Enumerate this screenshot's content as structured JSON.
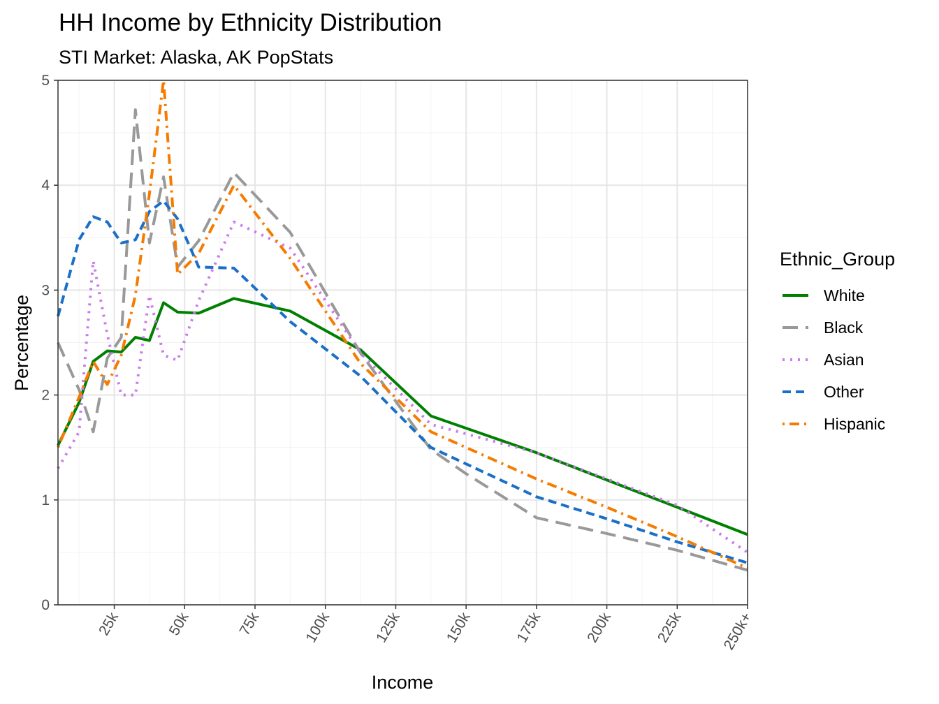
{
  "chart_data": {
    "type": "line",
    "title": "HH Income by Ethnicity Distribution",
    "subtitle": "STI Market: Alaska, AK PopStats",
    "xlabel": "Income",
    "ylabel": "Percentage",
    "xlim": [
      5,
      250
    ],
    "ylim": [
      0,
      5
    ],
    "x_ticks": [
      {
        "value": 25,
        "label": "25k"
      },
      {
        "value": 50,
        "label": "50k"
      },
      {
        "value": 75,
        "label": "75k"
      },
      {
        "value": 100,
        "label": "100k"
      },
      {
        "value": 125,
        "label": "125k"
      },
      {
        "value": 150,
        "label": "150k"
      },
      {
        "value": 175,
        "label": "175k"
      },
      {
        "value": 200,
        "label": "200k"
      },
      {
        "value": 225,
        "label": "225k"
      },
      {
        "value": 250,
        "label": "250k+"
      }
    ],
    "y_ticks": [
      {
        "value": 0,
        "label": "0"
      },
      {
        "value": 1,
        "label": "1"
      },
      {
        "value": 2,
        "label": "2"
      },
      {
        "value": 3,
        "label": "3"
      },
      {
        "value": 4,
        "label": "4"
      },
      {
        "value": 5,
        "label": "5"
      }
    ],
    "grid": true,
    "legend": {
      "title": "Ethnic_Group",
      "position": "right"
    },
    "series": [
      {
        "name": "White",
        "color": "#008000",
        "dash": "solid",
        "points": [
          [
            5,
            1.52
          ],
          [
            12.5,
            1.93
          ],
          [
            17.5,
            2.32
          ],
          [
            22.5,
            2.42
          ],
          [
            27.5,
            2.41
          ],
          [
            32.5,
            2.55
          ],
          [
            37.5,
            2.52
          ],
          [
            42.5,
            2.88
          ],
          [
            47.5,
            2.79
          ],
          [
            55,
            2.78
          ],
          [
            67.5,
            2.92
          ],
          [
            87.5,
            2.8
          ],
          [
            112.5,
            2.43
          ],
          [
            137.5,
            1.8
          ],
          [
            175,
            1.45
          ],
          [
            200,
            1.19
          ],
          [
            225,
            0.93
          ],
          [
            250,
            0.67
          ]
        ]
      },
      {
        "name": "Black",
        "color": "#999999",
        "dash": "longdash",
        "points": [
          [
            5,
            2.5
          ],
          [
            12.5,
            2.05
          ],
          [
            17.5,
            1.65
          ],
          [
            22.5,
            2.35
          ],
          [
            27.5,
            2.55
          ],
          [
            32.5,
            4.72
          ],
          [
            37.5,
            3.45
          ],
          [
            42.5,
            4.08
          ],
          [
            47.5,
            3.22
          ],
          [
            55,
            3.47
          ],
          [
            67.5,
            4.12
          ],
          [
            87.5,
            3.55
          ],
          [
            112.5,
            2.4
          ],
          [
            137.5,
            1.48
          ],
          [
            150,
            1.25
          ],
          [
            175,
            0.83
          ],
          [
            200,
            0.68
          ],
          [
            225,
            0.52
          ],
          [
            250,
            0.33
          ]
        ]
      },
      {
        "name": "Asian",
        "color": "#cc79ea",
        "dash": "dotted",
        "points": [
          [
            5,
            1.3
          ],
          [
            12.5,
            1.65
          ],
          [
            17.5,
            3.28
          ],
          [
            22.5,
            2.58
          ],
          [
            27.5,
            2.0
          ],
          [
            32.5,
            2.0
          ],
          [
            37.5,
            2.95
          ],
          [
            42.5,
            2.38
          ],
          [
            47.5,
            2.33
          ],
          [
            55,
            2.9
          ],
          [
            67.5,
            3.65
          ],
          [
            87.5,
            3.4
          ],
          [
            112.5,
            2.4
          ],
          [
            137.5,
            1.72
          ],
          [
            175,
            1.45
          ],
          [
            200,
            1.2
          ],
          [
            225,
            0.95
          ],
          [
            250,
            0.5
          ]
        ]
      },
      {
        "name": "Other",
        "color": "#1b6fc6",
        "dash": "dashed",
        "points": [
          [
            5,
            2.75
          ],
          [
            12.5,
            3.48
          ],
          [
            17.5,
            3.7
          ],
          [
            22.5,
            3.65
          ],
          [
            27.5,
            3.45
          ],
          [
            32.5,
            3.48
          ],
          [
            37.5,
            3.75
          ],
          [
            42.5,
            3.85
          ],
          [
            47.5,
            3.68
          ],
          [
            55,
            3.22
          ],
          [
            67.5,
            3.21
          ],
          [
            87.5,
            2.7
          ],
          [
            112.5,
            2.18
          ],
          [
            137.5,
            1.5
          ],
          [
            175,
            1.03
          ],
          [
            200,
            0.82
          ],
          [
            225,
            0.6
          ],
          [
            250,
            0.4
          ]
        ]
      },
      {
        "name": "Hispanic",
        "color": "#f57c00",
        "dash": "dotdash",
        "points": [
          [
            5,
            1.5
          ],
          [
            12.5,
            1.98
          ],
          [
            17.5,
            2.32
          ],
          [
            22.5,
            2.1
          ],
          [
            27.5,
            2.38
          ],
          [
            32.5,
            2.95
          ],
          [
            37.5,
            3.92
          ],
          [
            42.5,
            5.0
          ],
          [
            47.5,
            3.15
          ],
          [
            55,
            3.35
          ],
          [
            67.5,
            4.0
          ],
          [
            87.5,
            3.3
          ],
          [
            112.5,
            2.3
          ],
          [
            137.5,
            1.65
          ],
          [
            175,
            1.2
          ],
          [
            200,
            0.93
          ],
          [
            225,
            0.65
          ],
          [
            250,
            0.35
          ]
        ]
      }
    ]
  }
}
